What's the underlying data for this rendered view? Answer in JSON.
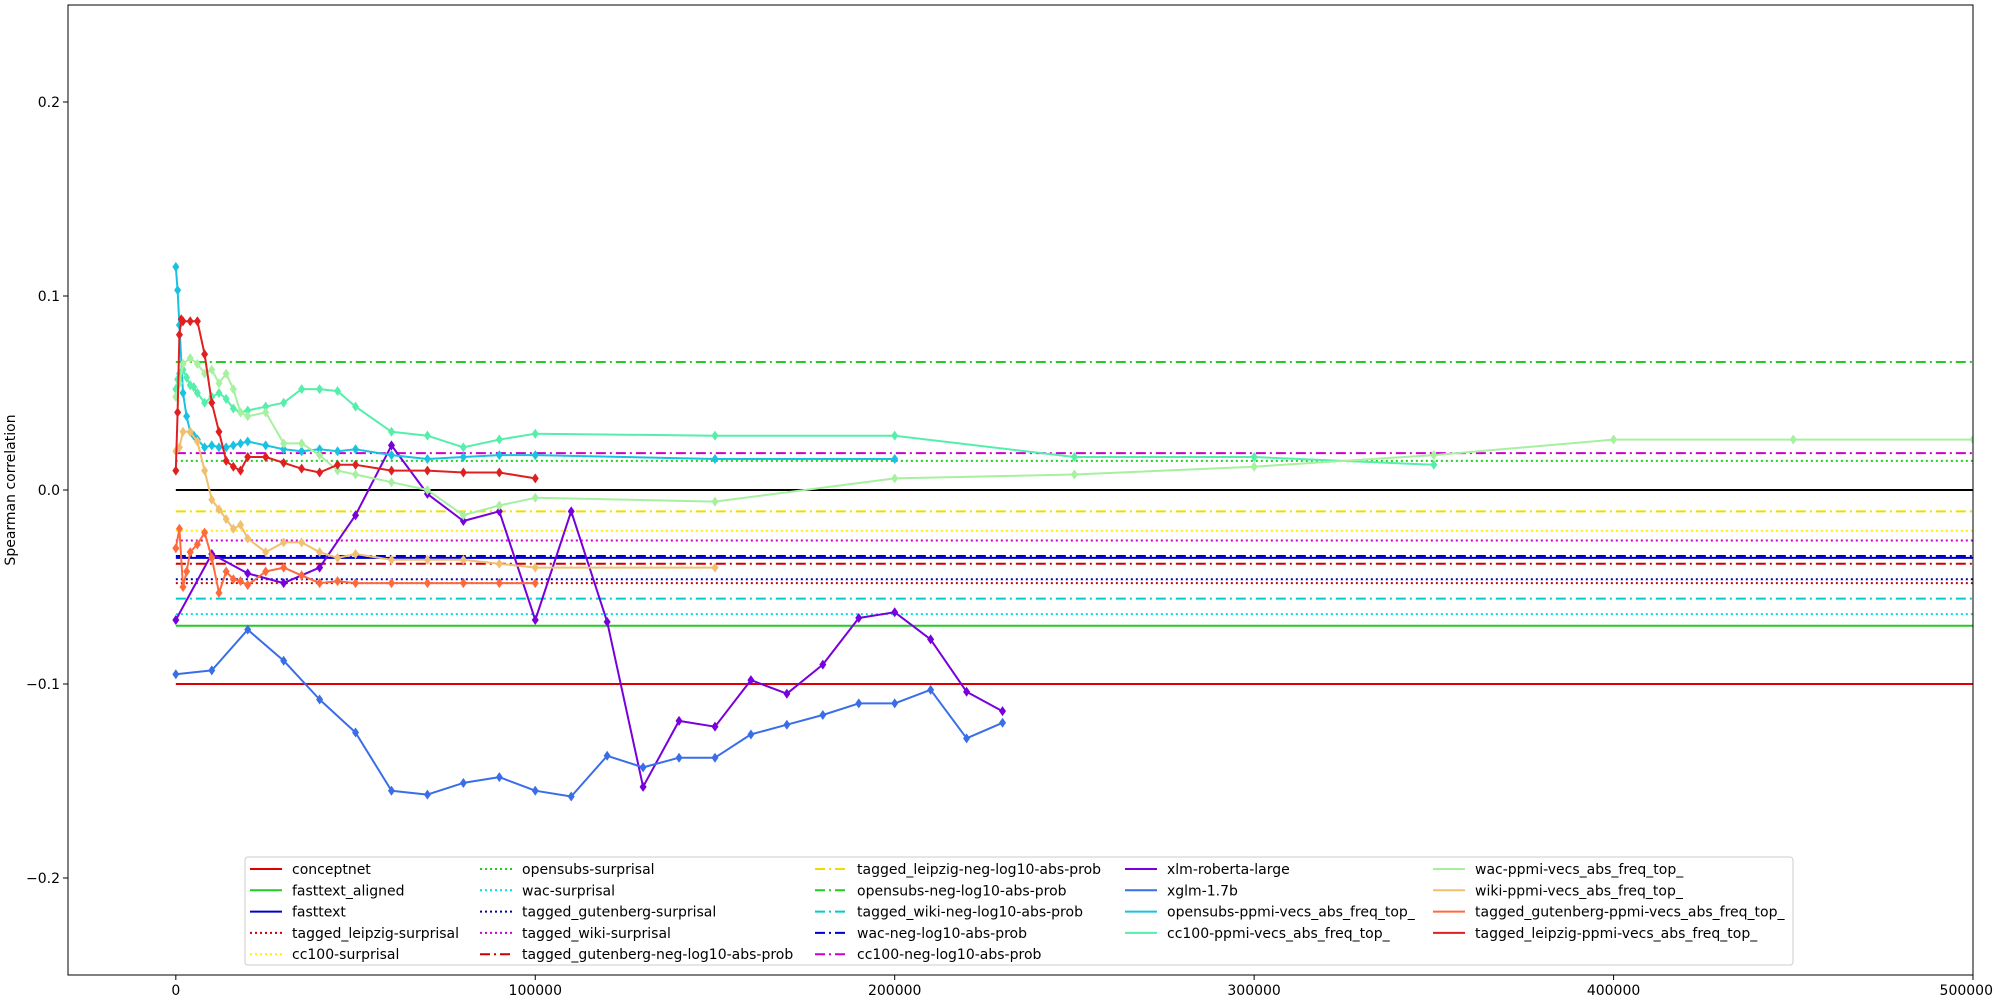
{
  "chart_data": {
    "type": "line",
    "title": "",
    "xlabel": "",
    "ylabel": "Spearman correlation",
    "xlim": [
      -30000,
      500000
    ],
    "ylim": [
      -0.25,
      0.25
    ],
    "xticks": [
      0,
      100000,
      200000,
      300000,
      400000,
      500000
    ],
    "yticks": [
      -0.2,
      -0.1,
      0.0,
      0.1,
      0.2
    ],
    "xtick_labels": [
      "0",
      "100000",
      "200000",
      "300000",
      "400000",
      "500000"
    ],
    "ytick_labels": [
      "−0.2",
      "−0.1",
      "0.0",
      "0.1",
      "0.2"
    ],
    "grid": false,
    "legend_position": "lower-center",
    "zero_line": {
      "y": 0.0,
      "color": "#000000"
    },
    "hlines": [
      {
        "name": "conceptnet",
        "y": -0.1,
        "color": "#dd0000",
        "dash": "solid"
      },
      {
        "name": "fasttext_aligned",
        "y": -0.07,
        "color": "#22cc22",
        "dash": "solid"
      },
      {
        "name": "fasttext",
        "y": -0.035,
        "color": "#0000cc",
        "dash": "solid"
      },
      {
        "name": "tagged_leipzig-surprisal",
        "y": -0.048,
        "color": "#cc0000",
        "dash": "dotted"
      },
      {
        "name": "cc100-surprisal",
        "y": -0.021,
        "color": "#ffee00",
        "dash": "dotted"
      },
      {
        "name": "opensubs-surprisal",
        "y": 0.015,
        "color": "#22cc22",
        "dash": "dotted"
      },
      {
        "name": "wac-surprisal",
        "y": -0.064,
        "color": "#00dddd",
        "dash": "dotted"
      },
      {
        "name": "tagged_gutenberg-surprisal",
        "y": -0.046,
        "color": "#0000aa",
        "dash": "dotted"
      },
      {
        "name": "tagged_wiki-surprisal",
        "y": -0.026,
        "color": "#cc00cc",
        "dash": "dotted"
      },
      {
        "name": "tagged_gutenberg-neg-log10-abs-prob",
        "y": -0.038,
        "color": "#cc0000",
        "dash": "dashdot"
      },
      {
        "name": "tagged_leipzig-neg-log10-abs-prob",
        "y": -0.011,
        "color": "#eedd00",
        "dash": "dashdot"
      },
      {
        "name": "opensubs-neg-log10-abs-prob",
        "y": 0.066,
        "color": "#22cc22",
        "dash": "dashdot"
      },
      {
        "name": "tagged_wiki-neg-log10-abs-prob",
        "y": -0.056,
        "color": "#00cccc",
        "dash": "dashdot"
      },
      {
        "name": "wac-neg-log10-abs-prob",
        "y": -0.034,
        "color": "#0000cc",
        "dash": "dashdot"
      },
      {
        "name": "cc100-neg-log10-abs-prob",
        "y": 0.019,
        "color": "#cc00cc",
        "dash": "dashdot"
      }
    ],
    "series": [
      {
        "name": "xlm-roberta-large",
        "color": "#7700dd",
        "x": [
          0,
          10000,
          20000,
          30000,
          40000,
          50000,
          60000,
          70000,
          80000,
          90000,
          100000,
          110000,
          120000,
          130000,
          140000,
          150000,
          160000,
          170000,
          180000,
          190000,
          200000,
          210000,
          220000,
          230000
        ],
        "y": [
          -0.067,
          -0.033,
          -0.043,
          -0.048,
          -0.04,
          -0.013,
          0.023,
          -0.002,
          -0.016,
          -0.011,
          -0.067,
          -0.011,
          -0.068,
          -0.153,
          -0.119,
          -0.122,
          -0.098,
          -0.105,
          -0.09,
          -0.066,
          -0.063,
          -0.077,
          -0.104,
          -0.114
        ]
      },
      {
        "name": "xglm-1.7b",
        "color": "#3a6ee8",
        "x": [
          0,
          10000,
          20000,
          30000,
          40000,
          50000,
          60000,
          70000,
          80000,
          90000,
          100000,
          110000,
          120000,
          130000,
          140000,
          150000,
          160000,
          170000,
          180000,
          190000,
          200000,
          210000,
          220000,
          230000
        ],
        "y": [
          -0.095,
          -0.093,
          -0.072,
          -0.088,
          -0.108,
          -0.125,
          -0.155,
          -0.157,
          -0.151,
          -0.148,
          -0.155,
          -0.158,
          -0.137,
          -0.143,
          -0.138,
          -0.138,
          -0.126,
          -0.121,
          -0.116,
          -0.11,
          -0.11,
          -0.103,
          -0.128,
          -0.12
        ]
      },
      {
        "name": "opensubs-ppmi-vecs_abs_freq_top_",
        "color": "#18c2e0",
        "x": [
          0,
          500,
          1000,
          2000,
          3000,
          4000,
          5000,
          6000,
          8000,
          10000,
          12000,
          14000,
          16000,
          18000,
          20000,
          25000,
          30000,
          35000,
          40000,
          45000,
          50000,
          60000,
          70000,
          80000,
          90000,
          100000,
          150000,
          200000
        ],
        "y": [
          0.115,
          0.103,
          0.085,
          0.05,
          0.038,
          0.03,
          0.028,
          0.026,
          0.022,
          0.023,
          0.022,
          0.022,
          0.023,
          0.024,
          0.025,
          0.023,
          0.021,
          0.02,
          0.021,
          0.02,
          0.021,
          0.018,
          0.016,
          0.017,
          0.018,
          0.018,
          0.016,
          0.016
        ]
      },
      {
        "name": "cc100-ppmi-vecs_abs_freq_top_",
        "color": "#55eeaa",
        "x": [
          0,
          500,
          1000,
          2000,
          3000,
          4000,
          5000,
          6000,
          8000,
          10000,
          12000,
          14000,
          16000,
          18000,
          20000,
          25000,
          30000,
          35000,
          40000,
          45000,
          50000,
          60000,
          70000,
          80000,
          90000,
          100000,
          150000,
          200000,
          250000,
          300000,
          350000
        ],
        "y": [
          0.052,
          0.057,
          0.06,
          0.062,
          0.058,
          0.054,
          0.053,
          0.05,
          0.045,
          0.048,
          0.05,
          0.047,
          0.042,
          0.04,
          0.041,
          0.043,
          0.045,
          0.052,
          0.052,
          0.051,
          0.043,
          0.03,
          0.028,
          0.022,
          0.026,
          0.029,
          0.028,
          0.028,
          0.017,
          0.017,
          0.013
        ]
      },
      {
        "name": "wac-ppmi-vecs_abs_freq_top_",
        "color": "#a6f0a0",
        "x": [
          0,
          1000,
          2000,
          4000,
          6000,
          8000,
          10000,
          12000,
          14000,
          16000,
          18000,
          20000,
          25000,
          30000,
          35000,
          40000,
          45000,
          50000,
          60000,
          70000,
          80000,
          90000,
          100000,
          150000,
          200000,
          250000,
          300000,
          350000,
          400000,
          450000,
          500000
        ],
        "y": [
          0.048,
          0.055,
          0.065,
          0.068,
          0.065,
          0.06,
          0.062,
          0.055,
          0.06,
          0.052,
          0.04,
          0.038,
          0.04,
          0.024,
          0.024,
          0.018,
          0.01,
          0.008,
          0.004,
          0.0,
          -0.013,
          -0.008,
          -0.004,
          -0.006,
          0.006,
          0.008,
          0.012,
          0.018,
          0.026,
          0.026,
          0.026
        ]
      },
      {
        "name": "wiki-ppmi-vecs_abs_freq_top_",
        "color": "#f0c070",
        "x": [
          0,
          1000,
          2000,
          4000,
          6000,
          8000,
          10000,
          12000,
          14000,
          16000,
          18000,
          20000,
          25000,
          30000,
          35000,
          40000,
          45000,
          50000,
          60000,
          70000,
          80000,
          90000,
          100000,
          150000
        ],
        "y": [
          0.02,
          0.022,
          0.03,
          0.03,
          0.025,
          0.01,
          -0.005,
          -0.01,
          -0.015,
          -0.02,
          -0.018,
          -0.025,
          -0.032,
          -0.027,
          -0.027,
          -0.032,
          -0.035,
          -0.033,
          -0.036,
          -0.036,
          -0.036,
          -0.038,
          -0.04,
          -0.04
        ]
      },
      {
        "name": "tagged_gutenberg-ppmi-vecs_abs_freq_top_",
        "color": "#ff6a3d",
        "x": [
          0,
          1000,
          2000,
          3000,
          4000,
          6000,
          8000,
          10000,
          12000,
          14000,
          16000,
          18000,
          20000,
          25000,
          30000,
          35000,
          40000,
          45000,
          50000,
          60000,
          70000,
          80000,
          90000,
          100000
        ],
        "y": [
          -0.03,
          -0.02,
          -0.05,
          -0.042,
          -0.032,
          -0.028,
          -0.022,
          -0.035,
          -0.053,
          -0.042,
          -0.046,
          -0.047,
          -0.049,
          -0.042,
          -0.04,
          -0.044,
          -0.048,
          -0.047,
          -0.048,
          -0.048,
          -0.048,
          -0.048,
          -0.048,
          -0.048
        ]
      },
      {
        "name": "tagged_leipzig-ppmi-vecs_abs_freq_top_",
        "color": "#e02020",
        "x": [
          0,
          500,
          1000,
          1500,
          2000,
          4000,
          6000,
          8000,
          10000,
          12000,
          14000,
          16000,
          18000,
          20000,
          25000,
          30000,
          35000,
          40000,
          45000,
          50000,
          60000,
          70000,
          80000,
          90000,
          100000
        ],
        "y": [
          0.01,
          0.04,
          0.08,
          0.088,
          0.087,
          0.087,
          0.087,
          0.07,
          0.045,
          0.03,
          0.015,
          0.012,
          0.01,
          0.017,
          0.017,
          0.014,
          0.011,
          0.009,
          0.013,
          0.013,
          0.01,
          0.01,
          0.009,
          0.009,
          0.006
        ]
      }
    ],
    "legend_rows": [
      [
        "conceptnet",
        "opensubs-surprisal",
        "tagged_leipzig-neg-log10-abs-prob",
        "xlm-roberta-large",
        "wac-ppmi-vecs_abs_freq_top_"
      ],
      [
        "fasttext_aligned",
        "wac-surprisal",
        "opensubs-neg-log10-abs-prob",
        "xglm-1.7b",
        "wiki-ppmi-vecs_abs_freq_top_"
      ],
      [
        "fasttext",
        "tagged_gutenberg-surprisal",
        "tagged_wiki-neg-log10-abs-prob",
        "opensubs-ppmi-vecs_abs_freq_top_",
        "tagged_gutenberg-ppmi-vecs_abs_freq_top_"
      ],
      [
        "tagged_leipzig-surprisal",
        "tagged_wiki-surprisal",
        "wac-neg-log10-abs-prob",
        "cc100-ppmi-vecs_abs_freq_top_",
        "tagged_leipzig-ppmi-vecs_abs_freq_top_"
      ],
      [
        "cc100-surprisal",
        "tagged_gutenberg-neg-log10-abs-prob",
        "cc100-neg-log10-abs-prob",
        "",
        ""
      ]
    ]
  }
}
